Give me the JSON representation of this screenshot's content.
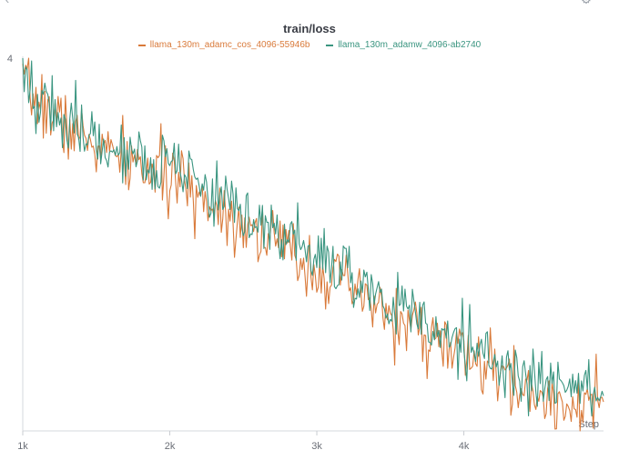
{
  "panel": {
    "title": "train/loss"
  },
  "chart_data": {
    "type": "line",
    "title": "train/loss",
    "xlabel": "Step",
    "ylabel": "",
    "xlim": [
      1000,
      4950
    ],
    "ylim": [
      1.95,
      4.0
    ],
    "x_ticks": [
      {
        "value": 1000,
        "label": "1k"
      },
      {
        "value": 2000,
        "label": "2k"
      },
      {
        "value": 3000,
        "label": "3k"
      },
      {
        "value": 4000,
        "label": "4k"
      }
    ],
    "y_ticks": [
      {
        "value": 4,
        "label": "4"
      }
    ],
    "x_step": 10,
    "series": [
      {
        "name": "llama_130m_adamc_cos_4096-55946b",
        "color": "#d97a3a",
        "noise": 0.09,
        "seed": 7,
        "trend_x": [
          1000,
          1300,
          1600,
          2000,
          2500,
          3000,
          3500,
          4000,
          4500,
          4950
        ],
        "trend_y": [
          3.84,
          3.62,
          3.47,
          3.34,
          3.1,
          2.84,
          2.58,
          2.37,
          2.13,
          2.09
        ]
      },
      {
        "name": "llama_130m_adamw_4096-ab2740",
        "color": "#3a9580",
        "noise": 0.09,
        "seed": 19,
        "trend_x": [
          1000,
          1300,
          1600,
          2000,
          2500,
          3000,
          3500,
          4000,
          4500,
          4950
        ],
        "trend_y": [
          3.86,
          3.66,
          3.52,
          3.38,
          3.16,
          2.9,
          2.65,
          2.44,
          2.2,
          2.16
        ]
      }
    ]
  }
}
